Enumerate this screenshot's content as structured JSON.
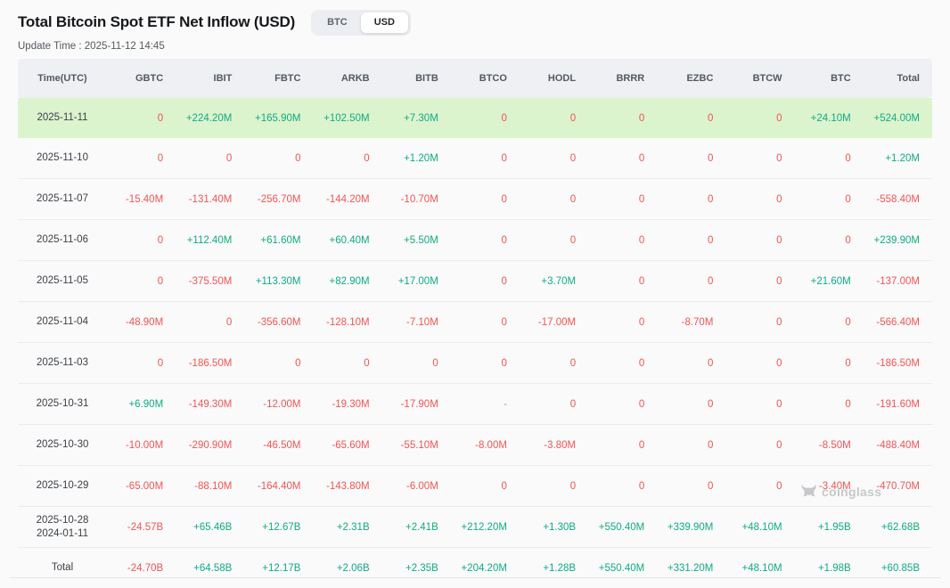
{
  "page": {
    "title": "Total Bitcoin Spot ETF Net Inflow (USD)",
    "update_time": "Update Time : 2025-11-12 14:45",
    "watermark": "coinglass"
  },
  "toggle": {
    "options": [
      "BTC",
      "USD"
    ],
    "selected": "USD"
  },
  "colors": {
    "positive": "#0fab84",
    "negative": "#f05454",
    "highlight_row": "#dcf4ce",
    "header_bg": "#eef0f3",
    "dash": "#9aa0a6",
    "watermark": "#c6c8cb"
  },
  "table": {
    "columns": [
      "Time(UTC)",
      "GBTC",
      "IBIT",
      "FBTC",
      "ARKB",
      "BITB",
      "BTCO",
      "HODL",
      "BRRR",
      "EZBC",
      "BTCW",
      "BTC",
      "Total"
    ],
    "rows": [
      {
        "date": "2025-11-11",
        "highlight": true,
        "values": [
          "0",
          "+224.20M",
          "+165.90M",
          "+102.50M",
          "+7.30M",
          "0",
          "0",
          "0",
          "0",
          "0",
          "+24.10M",
          "+524.00M"
        ]
      },
      {
        "date": "2025-11-10",
        "values": [
          "0",
          "0",
          "0",
          "0",
          "+1.20M",
          "0",
          "0",
          "0",
          "0",
          "0",
          "0",
          "+1.20M"
        ]
      },
      {
        "date": "2025-11-07",
        "values": [
          "-15.40M",
          "-131.40M",
          "-256.70M",
          "-144.20M",
          "-10.70M",
          "0",
          "0",
          "0",
          "0",
          "0",
          "0",
          "-558.40M"
        ]
      },
      {
        "date": "2025-11-06",
        "values": [
          "0",
          "+112.40M",
          "+61.60M",
          "+60.40M",
          "+5.50M",
          "0",
          "0",
          "0",
          "0",
          "0",
          "0",
          "+239.90M"
        ]
      },
      {
        "date": "2025-11-05",
        "values": [
          "0",
          "-375.50M",
          "+113.30M",
          "+82.90M",
          "+17.00M",
          "0",
          "+3.70M",
          "0",
          "0",
          "0",
          "+21.60M",
          "-137.00M"
        ]
      },
      {
        "date": "2025-11-04",
        "values": [
          "-48.90M",
          "0",
          "-356.60M",
          "-128.10M",
          "-7.10M",
          "0",
          "-17.00M",
          "0",
          "-8.70M",
          "0",
          "0",
          "-566.40M"
        ]
      },
      {
        "date": "2025-11-03",
        "values": [
          "0",
          "-186.50M",
          "0",
          "0",
          "0",
          "0",
          "0",
          "0",
          "0",
          "0",
          "0",
          "-186.50M"
        ]
      },
      {
        "date": "2025-10-31",
        "values": [
          "+6.90M",
          "-149.30M",
          "-12.00M",
          "-19.30M",
          "-17.90M",
          "-",
          "0",
          "0",
          "0",
          "0",
          "0",
          "-191.60M"
        ]
      },
      {
        "date": "2025-10-30",
        "values": [
          "-10.00M",
          "-290.90M",
          "-46.50M",
          "-65.60M",
          "-55.10M",
          "-8.00M",
          "-3.80M",
          "0",
          "0",
          "0",
          "-8.50M",
          "-488.40M"
        ]
      },
      {
        "date": "2025-10-29",
        "values": [
          "-65.00M",
          "-88.10M",
          "-164.40M",
          "-143.80M",
          "-6.00M",
          "0",
          "0",
          "0",
          "0",
          "0",
          "-3.40M",
          "-470.70M"
        ]
      },
      {
        "date": "2025-10-28",
        "date2": "2024-01-11",
        "values": [
          "-24.57B",
          "+65.46B",
          "+12.67B",
          "+2.31B",
          "+2.41B",
          "+212.20M",
          "+1.30B",
          "+550.40M",
          "+339.90M",
          "+48.10M",
          "+1.95B",
          "+62.68B"
        ]
      },
      {
        "date": "Total",
        "is_total": true,
        "values": [
          "-24.70B",
          "+64.58B",
          "+12.17B",
          "+2.06B",
          "+2.35B",
          "+204.20M",
          "+1.28B",
          "+550.40M",
          "+331.20M",
          "+48.10M",
          "+1.98B",
          "+60.85B"
        ]
      }
    ]
  }
}
